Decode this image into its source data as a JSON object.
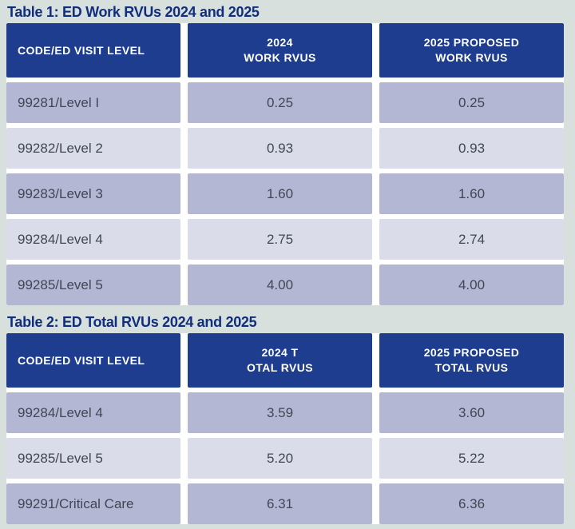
{
  "colors": {
    "bg": "#d8e0dd",
    "gap": "#ffffff",
    "navy": "#1e3d8e",
    "titleNavy": "#112e7e",
    "rowDark": "#b4b7d4",
    "rowLight": "#dbdce9",
    "cellText": "#414654",
    "headText": "#ffffff"
  },
  "tables": [
    {
      "title": "Table 1: ED Work RVUs 2024 and 2025",
      "headers": [
        [
          "CODE/ED VISIT LEVEL"
        ],
        [
          "2024",
          "WORK RVUS"
        ],
        [
          "2025 PROPOSED",
          "WORK RVUS"
        ]
      ],
      "rows": [
        [
          "99281/Level I",
          "0.25",
          "0.25"
        ],
        [
          "99282/Level 2",
          "0.93",
          "0.93"
        ],
        [
          "99283/Level 3",
          "1.60",
          "1.60"
        ],
        [
          "99284/Level 4",
          "2.75",
          "2.74"
        ],
        [
          "99285/Level 5",
          "4.00",
          "4.00"
        ]
      ]
    },
    {
      "title": "Table 2: ED Total RVUs 2024 and 2025",
      "headers": [
        [
          "CODE/ED VISIT LEVEL"
        ],
        [
          "2024 T",
          "OTAL RVUS"
        ],
        [
          "2025 PROPOSED",
          "TOTAL RVUS"
        ]
      ],
      "rows": [
        [
          "99284/Level 4",
          "3.59",
          "3.60"
        ],
        [
          "99285/Level 5",
          "5.20",
          "5.22"
        ],
        [
          "99291/Critical Care",
          "6.31",
          "6.36"
        ]
      ]
    }
  ]
}
